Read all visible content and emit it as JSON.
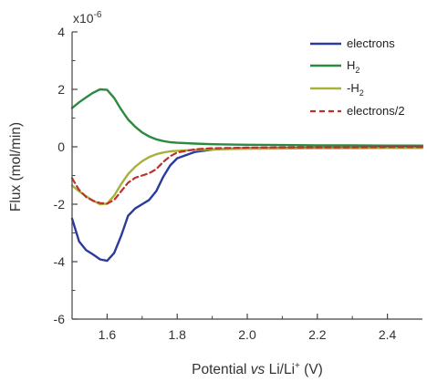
{
  "chart_data": {
    "type": "line",
    "xlabel_parts": {
      "prefix": "Potential ",
      "italic": "vs",
      "middle": " Li/Li",
      "superscript": "+",
      "suffix": " (V)"
    },
    "ylabel": "Flux (mol/min)",
    "y_multiplier": {
      "base": "x10",
      "exponent": "-6"
    },
    "xlim": [
      1.5,
      2.5
    ],
    "ylim": [
      -6,
      4
    ],
    "x_ticks": [
      "1.6",
      "1.8",
      "2.0",
      "2.2",
      "2.4"
    ],
    "x_tick_values": [
      1.6,
      1.8,
      2.0,
      2.2,
      2.4
    ],
    "y_ticks": [
      "-6",
      "-4",
      "-2",
      "0",
      "2",
      "4"
    ],
    "y_tick_values": [
      -6,
      -4,
      -2,
      0,
      2,
      4
    ],
    "grid": false,
    "legend_position": "top-right",
    "series": [
      {
        "name": "electrons",
        "color": "#2b3a9e",
        "dash": "solid",
        "x": [
          1.5,
          1.52,
          1.54,
          1.56,
          1.58,
          1.6,
          1.62,
          1.64,
          1.66,
          1.68,
          1.7,
          1.72,
          1.74,
          1.76,
          1.78,
          1.8,
          1.85,
          1.9,
          1.95,
          2.0,
          2.1,
          2.2,
          2.3,
          2.4,
          2.5
        ],
        "y": [
          -2.5,
          -3.3,
          -3.6,
          -3.75,
          -3.92,
          -3.97,
          -3.7,
          -3.1,
          -2.4,
          -2.15,
          -2.0,
          -1.85,
          -1.55,
          -1.05,
          -0.65,
          -0.4,
          -0.18,
          -0.1,
          -0.07,
          -0.05,
          -0.04,
          -0.03,
          -0.03,
          -0.02,
          -0.02
        ]
      },
      {
        "name": "H2",
        "name_base": "H",
        "name_sub": "2",
        "color": "#2b8a3e",
        "dash": "solid",
        "x": [
          1.5,
          1.52,
          1.54,
          1.56,
          1.58,
          1.6,
          1.62,
          1.64,
          1.66,
          1.68,
          1.7,
          1.72,
          1.74,
          1.76,
          1.78,
          1.8,
          1.85,
          1.9,
          2.0,
          2.1,
          2.2,
          2.3,
          2.4,
          2.5
        ],
        "y": [
          1.35,
          1.55,
          1.72,
          1.88,
          2.0,
          1.98,
          1.7,
          1.3,
          0.95,
          0.7,
          0.5,
          0.36,
          0.26,
          0.2,
          0.16,
          0.14,
          0.11,
          0.09,
          0.07,
          0.06,
          0.05,
          0.05,
          0.04,
          0.04
        ]
      },
      {
        "name": "-H2",
        "name_base": "-H",
        "name_sub": "2",
        "color": "#a7b23c",
        "dash": "solid",
        "x": [
          1.5,
          1.52,
          1.54,
          1.56,
          1.58,
          1.6,
          1.62,
          1.64,
          1.66,
          1.68,
          1.7,
          1.72,
          1.74,
          1.76,
          1.78,
          1.8,
          1.85,
          1.9,
          2.0,
          2.1,
          2.2,
          2.3,
          2.4,
          2.5
        ],
        "y": [
          -1.35,
          -1.55,
          -1.72,
          -1.88,
          -2.0,
          -1.98,
          -1.7,
          -1.3,
          -0.95,
          -0.7,
          -0.5,
          -0.36,
          -0.26,
          -0.2,
          -0.16,
          -0.14,
          -0.11,
          -0.09,
          -0.07,
          -0.06,
          -0.05,
          -0.05,
          -0.04,
          -0.04
        ]
      },
      {
        "name": "electrons/2",
        "color": "#c0302a",
        "dash": "dashed",
        "x": [
          1.5,
          1.52,
          1.54,
          1.56,
          1.58,
          1.6,
          1.62,
          1.64,
          1.66,
          1.68,
          1.7,
          1.72,
          1.74,
          1.76,
          1.78,
          1.8,
          1.85,
          1.9,
          1.95,
          2.0,
          2.1,
          2.2,
          2.3,
          2.4,
          2.5
        ],
        "y": [
          -1.1,
          -1.5,
          -1.75,
          -1.88,
          -1.96,
          -1.98,
          -1.85,
          -1.55,
          -1.25,
          -1.08,
          -1.0,
          -0.92,
          -0.78,
          -0.53,
          -0.33,
          -0.2,
          -0.09,
          -0.05,
          -0.04,
          -0.03,
          -0.02,
          -0.02,
          -0.02,
          -0.01,
          -0.01
        ]
      }
    ]
  }
}
